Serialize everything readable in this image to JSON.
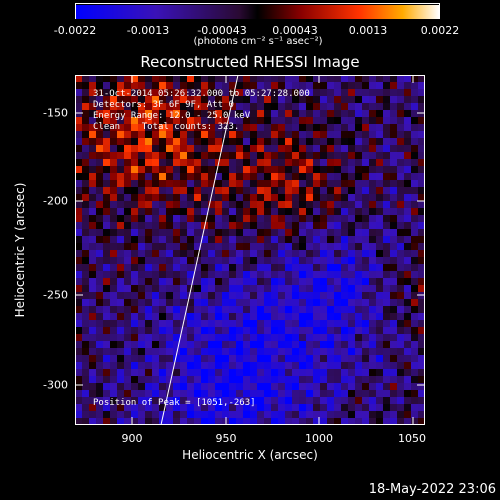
{
  "colorbar": {
    "ticks": [
      "-0.0022",
      "-0.0013",
      "-0.00043",
      "0.00043",
      "0.0013",
      "0.0022"
    ],
    "units": "(photons cm⁻² s⁻¹ asec⁻²)"
  },
  "title": "Reconstructed RHESSI Image",
  "info": {
    "line1": "31-Oct-2014 05:26:32.000 to 05:27:28.000",
    "line2": "Detectors: 3F 6F 9F, Att 0",
    "line3": "Energy Range: 12.0 - 25.0 keV",
    "line4": "Clean    Total counts: 323.",
    "peak": "Position of Peak = [1051,-263]"
  },
  "x_axis": {
    "label": "Heliocentric X (arcsec)",
    "ticks": [
      "900",
      "950",
      "1000",
      "1050"
    ]
  },
  "y_axis": {
    "label": "Heliocentric Y (arcsec)",
    "ticks": [
      "-150",
      "-200",
      "-250",
      "-300"
    ]
  },
  "timestamp": "18-May-2022 23:06",
  "colors": {
    "background": "#000000",
    "text": "#ffffff"
  }
}
